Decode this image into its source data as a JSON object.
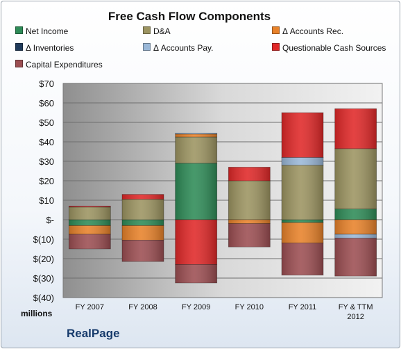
{
  "chart_data": {
    "type": "bar",
    "stacked": true,
    "title": "Free Cash Flow Components",
    "categories": [
      "FY 2007",
      "FY 2008",
      "FY 2009",
      "FY 2010",
      "FY 2011",
      "FY & TTM 2012"
    ],
    "ylim": [
      -40,
      70
    ],
    "yticks": [
      70,
      60,
      50,
      40,
      30,
      20,
      10,
      0,
      -10,
      -20,
      -30,
      -40
    ],
    "ytick_labels": [
      "$70",
      "$60",
      "$50",
      "$40",
      "$30",
      "$20",
      "$10",
      "$-",
      "$(10)",
      "$(20)",
      "$(30)",
      "$(40)"
    ],
    "ylabel": "millions",
    "grid": true,
    "legend_position": "top",
    "series": [
      {
        "name": "Net Income",
        "color": "#2e8b57",
        "values": [
          -3,
          -3,
          29,
          0,
          -1.5,
          5.5
        ]
      },
      {
        "name": "D&A",
        "color": "#9c9461",
        "values": [
          6.5,
          10.5,
          13.5,
          20,
          28,
          31
        ]
      },
      {
        "name": "Δ Accounts Rec.",
        "color": "#e8822a",
        "values": [
          -4.5,
          -7.5,
          1.5,
          -2,
          -10.5,
          -7.5
        ]
      },
      {
        "name": "Δ Inventories",
        "color": "#1f3a5a",
        "values": [
          0,
          0,
          0,
          0,
          0,
          0
        ]
      },
      {
        "name": "Δ Accounts Pay.",
        "color": "#9ab8d8",
        "values": [
          0,
          0,
          0.5,
          0,
          4,
          -2
        ]
      },
      {
        "name": "Questionable Cash Sources",
        "color": "#e02828",
        "values": [
          0.5,
          2.5,
          -23,
          7,
          23,
          20.5
        ]
      },
      {
        "name": "Capital Expenditures",
        "color": "#9c4e52",
        "values": [
          -7.5,
          -11,
          -9.5,
          -12,
          -16.5,
          -19.5
        ]
      }
    ]
  },
  "legend_title_note": "",
  "company": "RealPage"
}
